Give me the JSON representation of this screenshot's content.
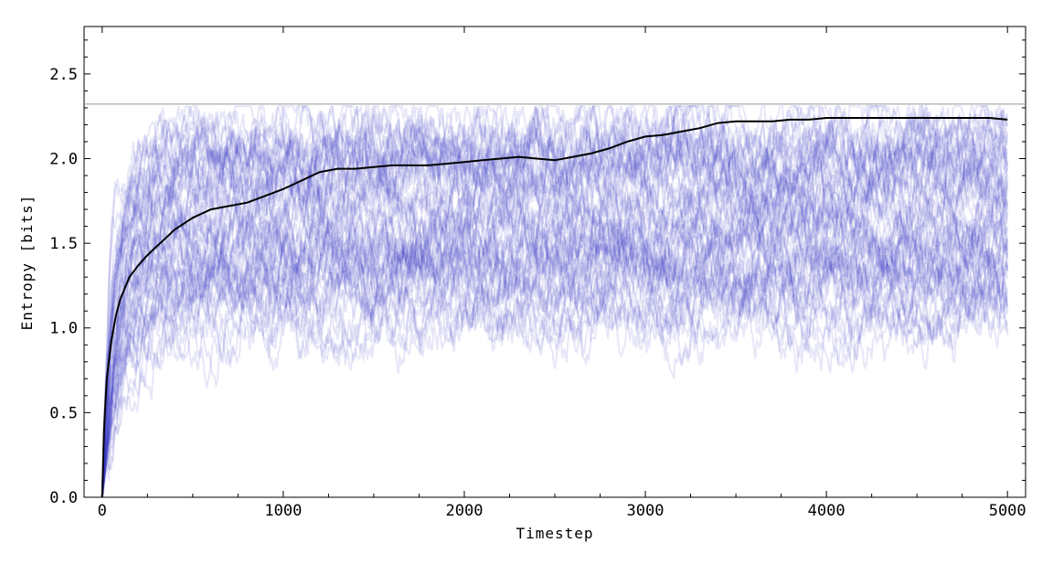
{
  "chart_data": {
    "type": "line",
    "title": "",
    "xlabel": "Timestep",
    "ylabel": "Entropy [bits]",
    "xlim": [
      -100,
      5100
    ],
    "ylim": [
      0,
      2.78
    ],
    "xticks": [
      0,
      1000,
      2000,
      3000,
      4000,
      5000
    ],
    "xtick_labels": [
      "0",
      "1000",
      "2000",
      "3000",
      "4000",
      "5000"
    ],
    "yticks": [
      0.0,
      0.5,
      1.0,
      1.5,
      2.0,
      2.5
    ],
    "ytick_labels": [
      "0.0",
      "0.5",
      "1.0",
      "1.5",
      "2.0",
      "2.5"
    ],
    "reference_line": {
      "y": 2.3219
    },
    "colors": {
      "ensemble": "#3a3ac8",
      "mean": "#000000",
      "reference": "#999999",
      "frame": "#000000"
    },
    "ensemble": {
      "runs": 60,
      "x_range": [
        0,
        5000
      ],
      "level_range": [
        1.0,
        2.25
      ]
    },
    "series": [
      {
        "role": "mean",
        "x": [
          0,
          10,
          25,
          50,
          75,
          100,
          150,
          200,
          250,
          300,
          350,
          400,
          500,
          600,
          700,
          800,
          900,
          1000,
          1100,
          1200,
          1300,
          1400,
          1500,
          1600,
          1700,
          1800,
          1900,
          2000,
          2100,
          2200,
          2300,
          2400,
          2500,
          2600,
          2700,
          2800,
          2900,
          3000,
          3100,
          3200,
          3300,
          3400,
          3500,
          3600,
          3700,
          3800,
          3900,
          4000,
          4100,
          4200,
          4300,
          4400,
          4500,
          4600,
          4700,
          4800,
          4900,
          5000
        ],
        "y": [
          0.0,
          0.4,
          0.7,
          0.92,
          1.07,
          1.17,
          1.3,
          1.37,
          1.43,
          1.48,
          1.53,
          1.58,
          1.65,
          1.7,
          1.72,
          1.74,
          1.78,
          1.82,
          1.87,
          1.92,
          1.94,
          1.94,
          1.95,
          1.96,
          1.96,
          1.96,
          1.97,
          1.98,
          1.99,
          2.0,
          2.01,
          2.0,
          1.99,
          2.01,
          2.03,
          2.06,
          2.1,
          2.13,
          2.14,
          2.16,
          2.18,
          2.21,
          2.22,
          2.22,
          2.22,
          2.23,
          2.23,
          2.24,
          2.24,
          2.24,
          2.24,
          2.24,
          2.24,
          2.24,
          2.24,
          2.24,
          2.24,
          2.23
        ]
      }
    ]
  }
}
